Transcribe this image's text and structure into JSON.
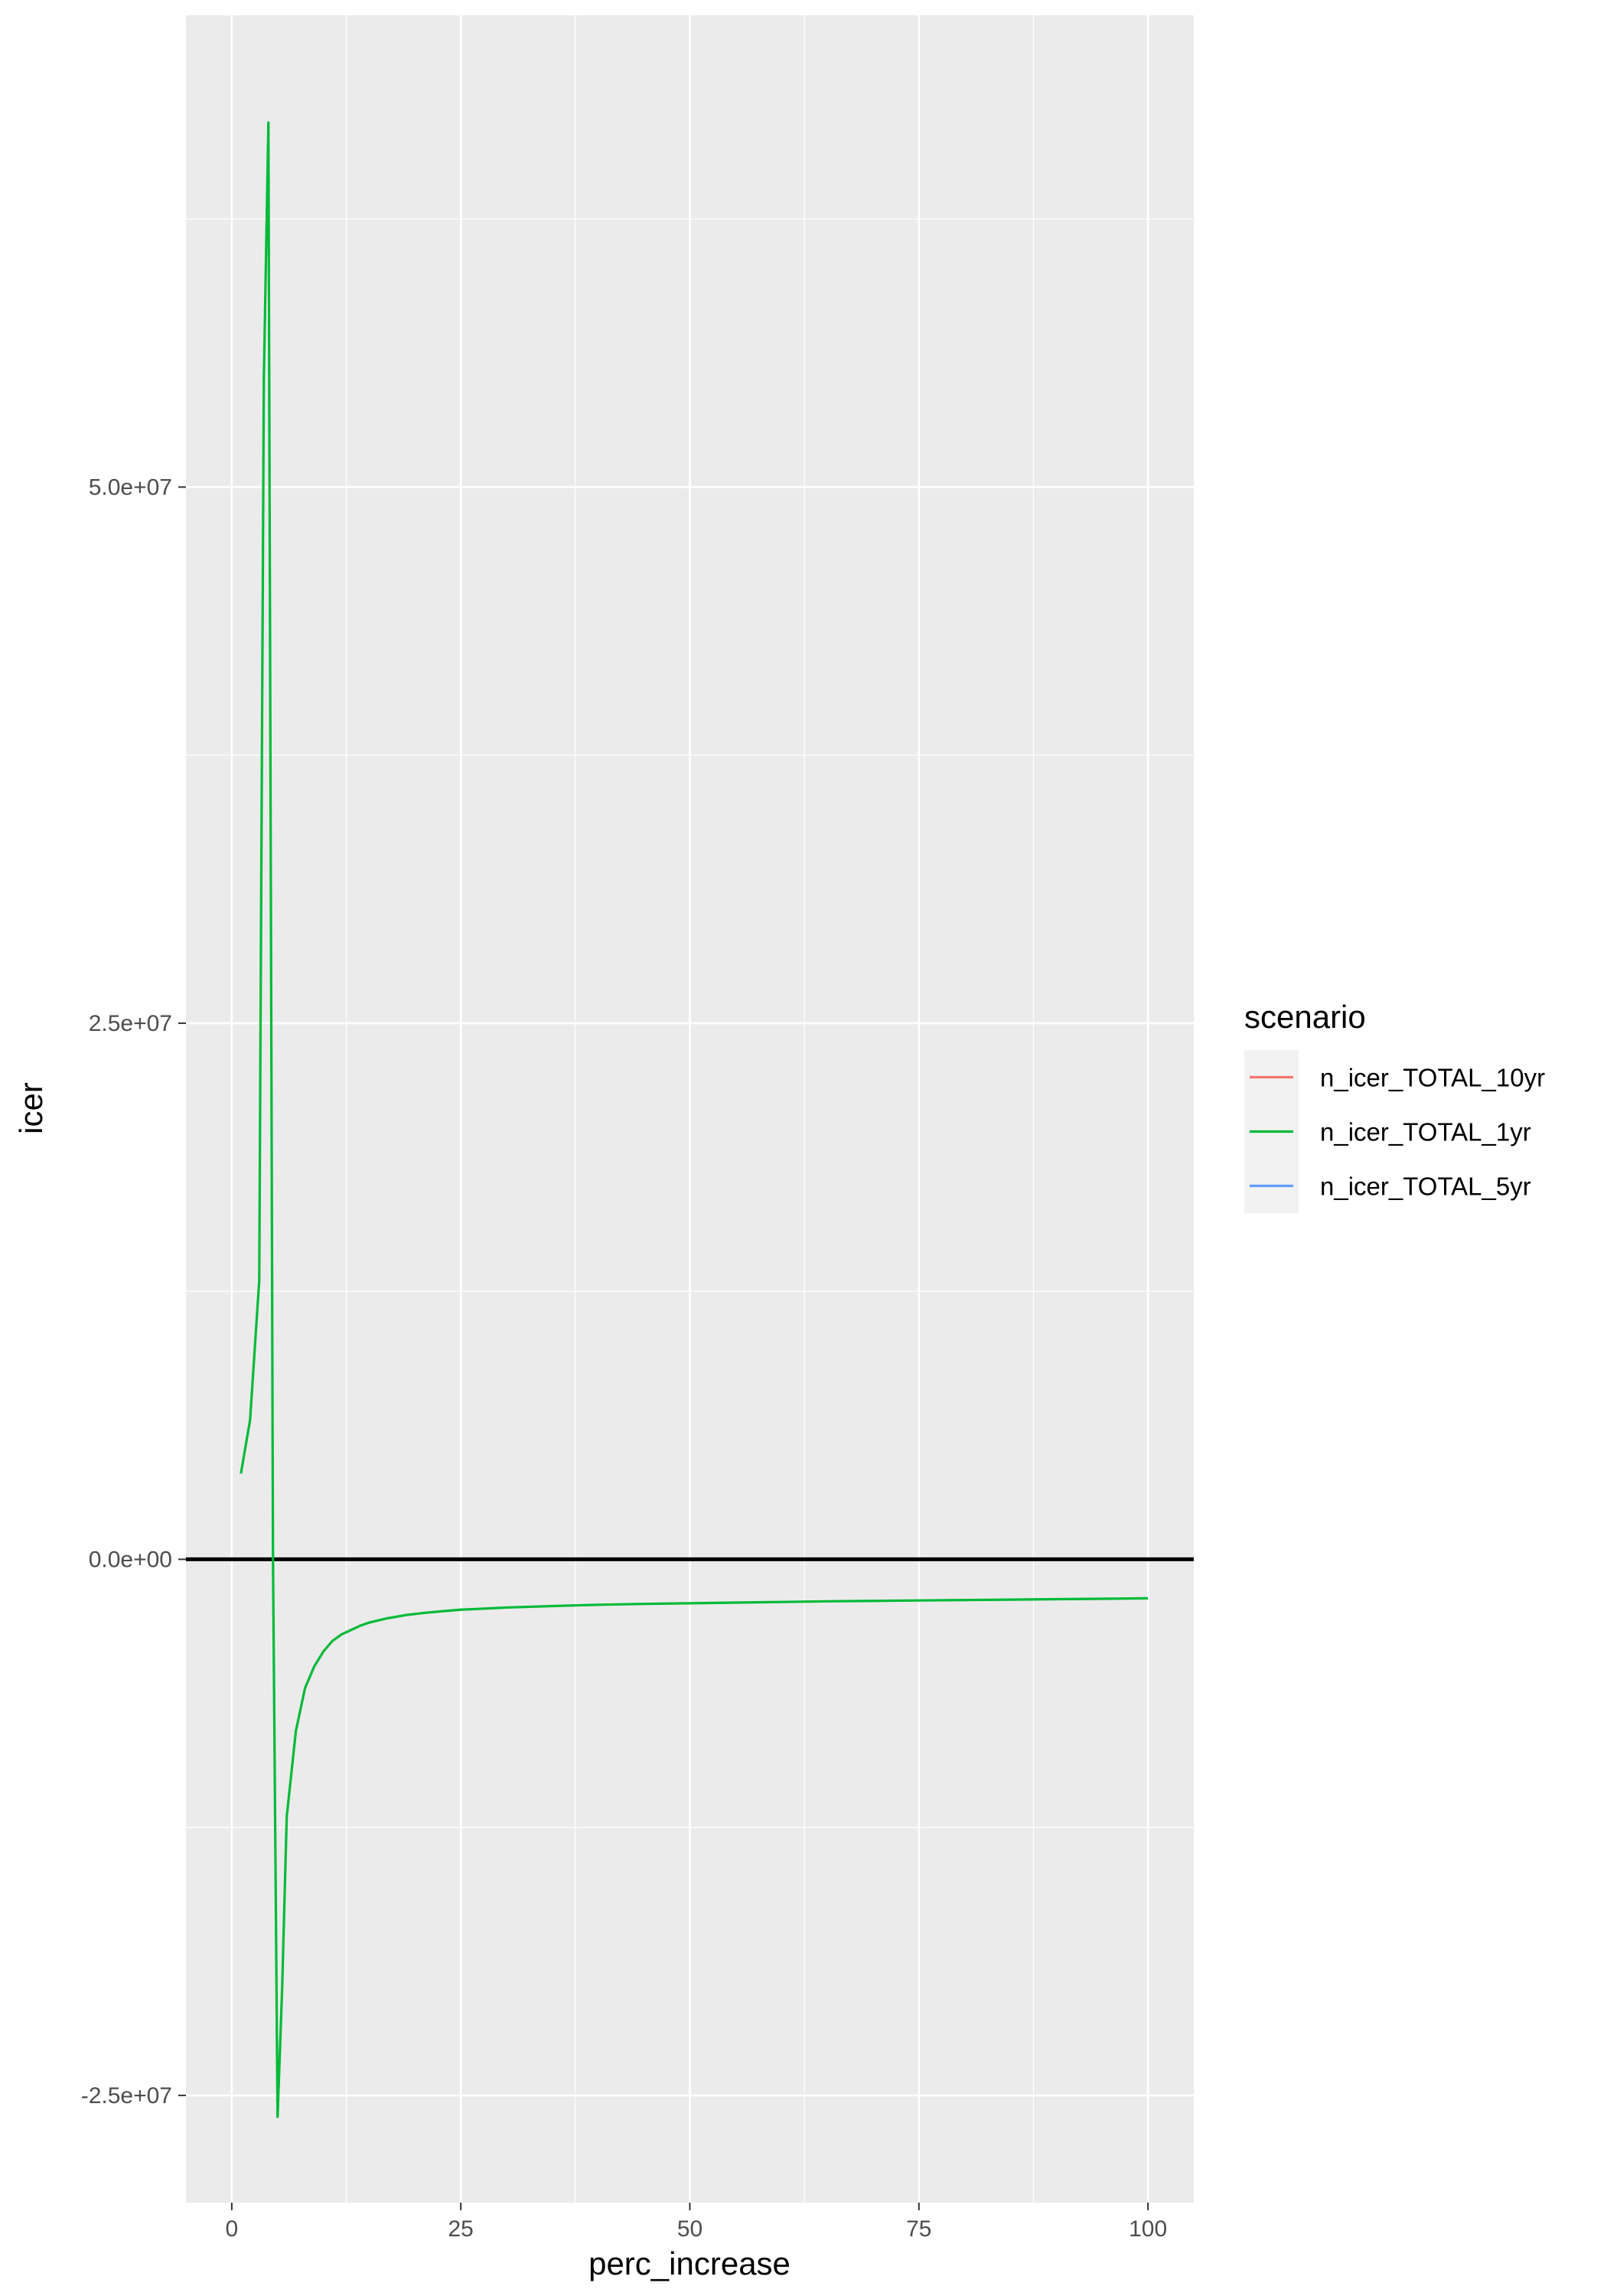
{
  "chart_data": {
    "type": "line",
    "title": "",
    "xlabel": "perc_increase",
    "ylabel": "icer",
    "xlim": [
      -5,
      105
    ],
    "ylim": [
      -30000000,
      72000000
    ],
    "x_ticks": [
      0,
      25,
      50,
      75,
      100
    ],
    "x_tick_labels": [
      "0",
      "25",
      "50",
      "75",
      "100"
    ],
    "y_ticks": [
      -25000000,
      0,
      25000000,
      50000000
    ],
    "y_tick_labels": [
      "-2.5e+07",
      "0.0e+00",
      "2.5e+07",
      "5.0e+07"
    ],
    "grid": true,
    "reference_line": {
      "y": 0,
      "color": "#000000"
    },
    "legend": {
      "title": "scenario",
      "position": "right",
      "entries": [
        {
          "label": "n_icer_TOTAL_10yr",
          "color": "#F8766D"
        },
        {
          "label": "n_icer_TOTAL_1yr",
          "color": "#00BA38"
        },
        {
          "label": "n_icer_TOTAL_5yr",
          "color": "#619CFF"
        }
      ]
    },
    "series": [
      {
        "name": "n_icer_TOTAL_1yr",
        "color": "#00BA38",
        "x": [
          1,
          2,
          3,
          3.5,
          4,
          4.5,
          5,
          5.5,
          6,
          7,
          8,
          9,
          10,
          11,
          12,
          13,
          14,
          15,
          17,
          19,
          21,
          23,
          25,
          30,
          35,
          40,
          45,
          50,
          55,
          60,
          65,
          70,
          75,
          80,
          85,
          90,
          95,
          100
        ],
        "y": [
          4000000,
          6500000,
          13000000,
          55000000,
          67000000,
          0,
          -26000000,
          -20000000,
          -12000000,
          -8000000,
          -6000000,
          -5000000,
          -4300000,
          -3800000,
          -3500000,
          -3300000,
          -3100000,
          -2950000,
          -2750000,
          -2600000,
          -2500000,
          -2420000,
          -2350000,
          -2250000,
          -2180000,
          -2120000,
          -2080000,
          -2050000,
          -2020000,
          -1990000,
          -1960000,
          -1940000,
          -1920000,
          -1900000,
          -1880000,
          -1860000,
          -1840000,
          -1820000
        ]
      }
    ]
  }
}
